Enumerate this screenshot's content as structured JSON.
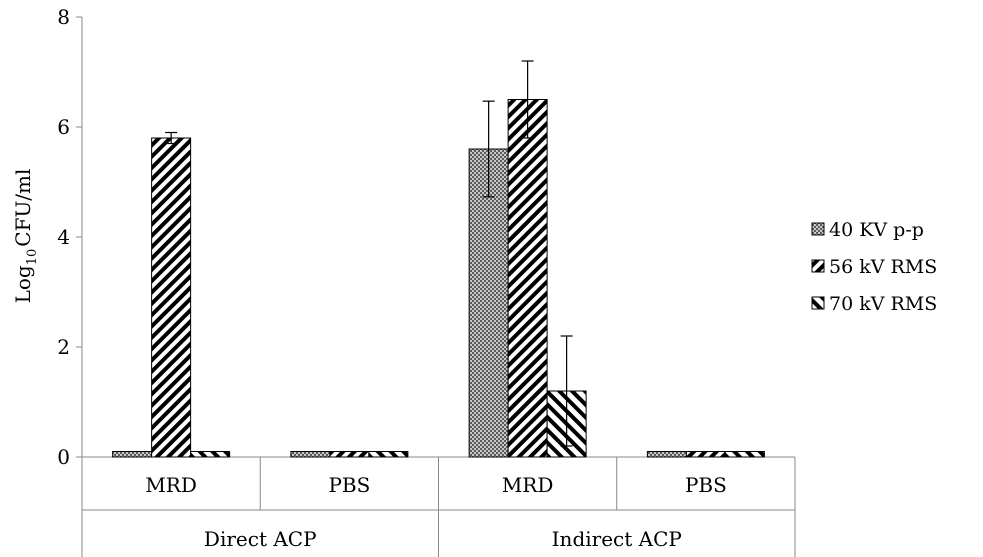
{
  "chart_data": {
    "type": "bar",
    "ylabel": "CFU/ml",
    "ylabel_prefix": "Log",
    "ylabel_subscript": "10",
    "ylim": [
      0,
      8
    ],
    "yticks": [
      "0",
      "2",
      "4",
      "6",
      "8"
    ],
    "grid": false,
    "legend_position": "right",
    "groups": [
      {
        "label": "Direct ACP",
        "categories": [
          "MRD",
          "PBS"
        ]
      },
      {
        "label": "Indirect ACP",
        "categories": [
          "MRD",
          "PBS"
        ]
      }
    ],
    "categories": [
      "MRD",
      "PBS",
      "MRD",
      "PBS"
    ],
    "series": [
      {
        "name": "40 KV p-p",
        "pattern": "crosshatch",
        "values": [
          0.1,
          0.1,
          5.6,
          0.1
        ],
        "errors": [
          0,
          0,
          0.87,
          0
        ]
      },
      {
        "name": "56 kV RMS",
        "pattern": "diagonal-dense",
        "values": [
          5.8,
          0.1,
          6.5,
          0.1
        ],
        "errors": [
          0.1,
          0,
          0.7,
          0
        ]
      },
      {
        "name": "70 kV RMS",
        "pattern": "diagonal-wide",
        "values": [
          0.1,
          0.1,
          1.2,
          0.1
        ],
        "errors": [
          0,
          0,
          1.0,
          0
        ]
      }
    ],
    "colors": {
      "stroke": "#000000",
      "axis": "#888888",
      "fill": "#ffffff"
    }
  }
}
